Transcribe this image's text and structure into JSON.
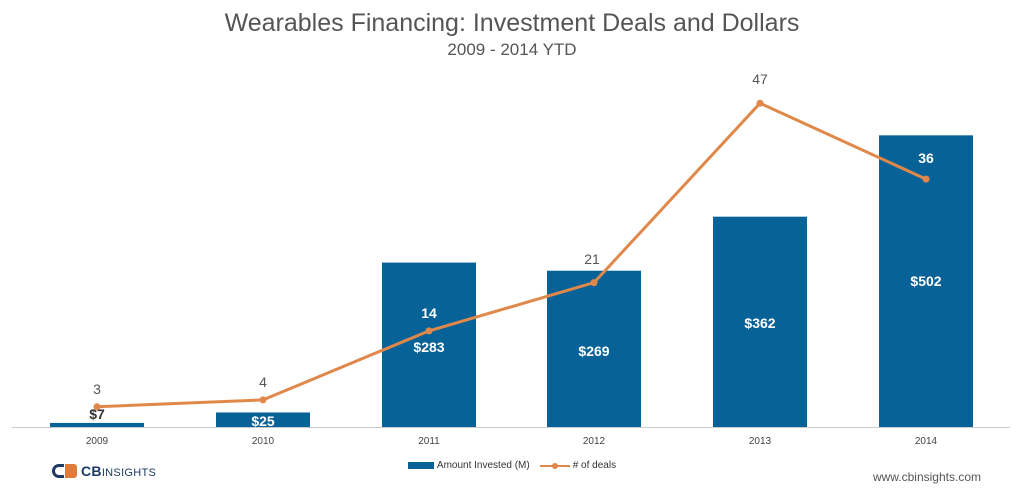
{
  "chart_data": {
    "type": "bar",
    "title": "Wearables Financing: Investment Deals and Dollars",
    "subtitle": "2009 - 2014 YTD",
    "categories": [
      "2009",
      "2010",
      "2011",
      "2012",
      "2013",
      "2014"
    ],
    "series": [
      {
        "name": "Amount Invested (M)",
        "type": "bar",
        "values": [
          7,
          25,
          283,
          269,
          362,
          502
        ],
        "labels": [
          "$7",
          "$25",
          "$283",
          "$269",
          "$362",
          "$502"
        ],
        "color": "#076397"
      },
      {
        "name": "# of deals",
        "type": "line",
        "values": [
          3,
          4,
          14,
          21,
          47,
          36
        ],
        "labels": [
          "3",
          "4",
          "14",
          "21",
          "47",
          "36"
        ],
        "color": "#e0884a"
      }
    ],
    "grid": false,
    "legend": "bottom-center"
  },
  "footer": {
    "logo_bold": "CB",
    "logo_rest": "INSIGHTS",
    "url": "www.cbinsights.com"
  },
  "colors": {
    "bar": "#076397",
    "line": "#e0884a",
    "bar_label": "#ffffff",
    "line_label": "#555555",
    "axis": "#cccccc"
  }
}
